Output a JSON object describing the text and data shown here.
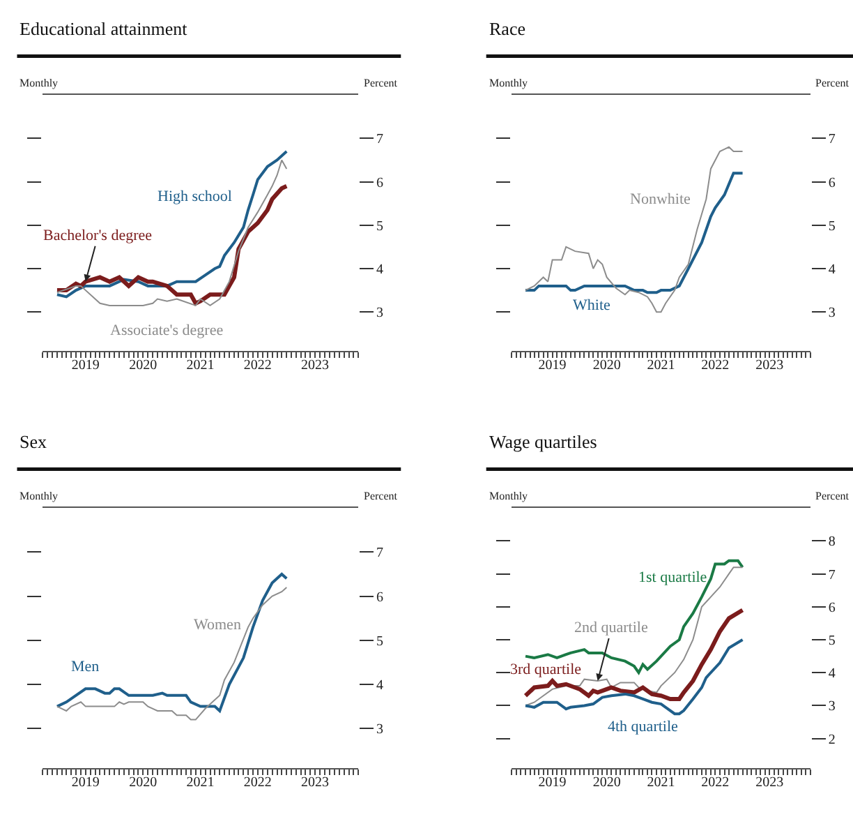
{
  "chart_data": [
    {
      "type": "line",
      "title": "Educational attainment",
      "ylabel": "Percent",
      "annotations": [
        "Monthly"
      ],
      "xlim": [
        "2018-10-01",
        "2024-04-01"
      ],
      "xticks": [
        {
          "value": "2019-07-01",
          "label": "2019"
        },
        {
          "value": "2020-07-01",
          "label": "2020"
        },
        {
          "value": "2021-07-01",
          "label": "2021"
        },
        {
          "value": "2022-07-01",
          "label": "2022"
        },
        {
          "value": "2023-07-01",
          "label": "2023"
        }
      ],
      "ylim": [
        2.1,
        8.0
      ],
      "yticks": [
        3,
        4,
        5,
        6,
        7
      ],
      "legend": false,
      "series": [
        {
          "name": "High school",
          "color": "#1f5f8b",
          "x": [
            "2019-01",
            "2019-03",
            "2019-05",
            "2019-07",
            "2019-12",
            "2020-03",
            "2020-06",
            "2020-08",
            "2020-12",
            "2021-02",
            "2021-06",
            "2021-08",
            "2021-10",
            "2021-11",
            "2021-12",
            "2022-02",
            "2022-04",
            "2022-05",
            "2022-06",
            "2022-07",
            "2022-09",
            "2022-11",
            "2023-01"
          ],
          "values": [
            3.4,
            3.35,
            3.5,
            3.6,
            3.6,
            3.75,
            3.7,
            3.6,
            3.6,
            3.7,
            3.7,
            3.85,
            4.0,
            4.05,
            4.3,
            4.6,
            4.95,
            5.35,
            5.7,
            6.05,
            6.35,
            6.5,
            6.7
          ]
        },
        {
          "name": "Bachelor's degree",
          "color": "#7b1c1c",
          "x": [
            "2019-01",
            "2019-03",
            "2019-05",
            "2019-06",
            "2019-07",
            "2019-10",
            "2019-12",
            "2020-02",
            "2020-04",
            "2020-06",
            "2020-08",
            "2020-09",
            "2020-12",
            "2021-02",
            "2021-05",
            "2021-06",
            "2021-07",
            "2021-09",
            "2021-12",
            "2022-01",
            "2022-02",
            "2022-03",
            "2022-05",
            "2022-07",
            "2022-09",
            "2022-10",
            "2022-12",
            "2023-01"
          ],
          "values": [
            3.5,
            3.5,
            3.65,
            3.6,
            3.7,
            3.8,
            3.7,
            3.8,
            3.6,
            3.8,
            3.7,
            3.7,
            3.6,
            3.4,
            3.4,
            3.2,
            3.25,
            3.4,
            3.4,
            3.6,
            3.8,
            4.45,
            4.85,
            5.05,
            5.35,
            5.6,
            5.85,
            5.9
          ]
        },
        {
          "name": "Associate's degree",
          "color": "#8c8c8c",
          "x": [
            "2019-01",
            "2019-05",
            "2019-06",
            "2019-10",
            "2019-12",
            "2020-07",
            "2020-09",
            "2020-10",
            "2020-12",
            "2021-02",
            "2021-06",
            "2021-07",
            "2021-09",
            "2021-11",
            "2022-01",
            "2022-03",
            "2022-05",
            "2022-07",
            "2022-09",
            "2022-10",
            "2022-11",
            "2022-12",
            "2023-01"
          ],
          "values": [
            3.45,
            3.6,
            3.6,
            3.2,
            3.15,
            3.15,
            3.2,
            3.3,
            3.25,
            3.3,
            3.15,
            3.3,
            3.15,
            3.3,
            3.7,
            4.4,
            4.95,
            5.3,
            5.7,
            5.9,
            6.15,
            6.5,
            6.3
          ]
        }
      ]
    },
    {
      "type": "line",
      "title": "Race",
      "ylabel": "Percent",
      "annotations": [
        "Monthly"
      ],
      "xlim": [
        "2018-10-01",
        "2024-04-01"
      ],
      "xticks": [
        {
          "value": "2019-07-01",
          "label": "2019"
        },
        {
          "value": "2020-07-01",
          "label": "2020"
        },
        {
          "value": "2021-07-01",
          "label": "2021"
        },
        {
          "value": "2022-07-01",
          "label": "2022"
        },
        {
          "value": "2023-07-01",
          "label": "2023"
        }
      ],
      "ylim": [
        2.1,
        8.0
      ],
      "yticks": [
        3,
        4,
        5,
        6,
        7
      ],
      "legend": false,
      "series": [
        {
          "name": "White",
          "color": "#1f5f8b",
          "x": [
            "2019-01",
            "2019-03",
            "2019-04",
            "2019-10",
            "2019-11",
            "2019-12",
            "2020-02",
            "2020-11",
            "2021-01",
            "2021-03",
            "2021-04",
            "2021-06",
            "2021-07",
            "2021-09",
            "2021-11",
            "2022-01",
            "2022-04",
            "2022-06",
            "2022-07",
            "2022-09",
            "2022-11",
            "2023-01"
          ],
          "values": [
            3.5,
            3.5,
            3.6,
            3.6,
            3.5,
            3.5,
            3.6,
            3.6,
            3.5,
            3.5,
            3.45,
            3.45,
            3.5,
            3.5,
            3.6,
            4.0,
            4.6,
            5.2,
            5.4,
            5.7,
            6.2,
            6.2
          ]
        },
        {
          "name": "Nonwhite",
          "color": "#8c8c8c",
          "x": [
            "2019-01",
            "2019-03",
            "2019-05",
            "2019-06",
            "2019-07",
            "2019-09",
            "2019-10",
            "2019-12",
            "2020-03",
            "2020-04",
            "2020-05",
            "2020-06",
            "2020-07",
            "2020-09",
            "2020-11",
            "2020-12",
            "2021-02",
            "2021-04",
            "2021-05",
            "2021-06",
            "2021-07",
            "2021-08",
            "2021-10",
            "2021-11",
            "2022-01",
            "2022-03",
            "2022-05",
            "2022-06",
            "2022-08",
            "2022-09",
            "2022-10",
            "2022-11",
            "2023-01"
          ],
          "values": [
            3.5,
            3.6,
            3.8,
            3.7,
            4.2,
            4.2,
            4.5,
            4.4,
            4.35,
            4.0,
            4.2,
            4.1,
            3.8,
            3.55,
            3.4,
            3.5,
            3.45,
            3.35,
            3.2,
            3.0,
            3.0,
            3.2,
            3.5,
            3.8,
            4.1,
            4.9,
            5.6,
            6.3,
            6.7,
            6.75,
            6.8,
            6.7,
            6.7
          ]
        }
      ]
    },
    {
      "type": "line",
      "title": "Sex",
      "ylabel": "Percent",
      "annotations": [
        "Monthly"
      ],
      "xlim": [
        "2018-10-01",
        "2024-04-01"
      ],
      "xticks": [
        {
          "value": "2019-07-01",
          "label": "2019"
        },
        {
          "value": "2020-07-01",
          "label": "2020"
        },
        {
          "value": "2021-07-01",
          "label": "2021"
        },
        {
          "value": "2022-07-01",
          "label": "2022"
        },
        {
          "value": "2023-07-01",
          "label": "2023"
        }
      ],
      "ylim": [
        2.1,
        8.0
      ],
      "yticks": [
        3,
        4,
        5,
        6,
        7
      ],
      "legend": false,
      "series": [
        {
          "name": "Men",
          "color": "#1f5f8b",
          "x": [
            "2019-01",
            "2019-03",
            "2019-07",
            "2019-09",
            "2019-11",
            "2019-12",
            "2020-01",
            "2020-02",
            "2020-04",
            "2020-09",
            "2020-11",
            "2020-12",
            "2021-04",
            "2021-05",
            "2021-07",
            "2021-10",
            "2021-11",
            "2022-01",
            "2022-04",
            "2022-06",
            "2022-08",
            "2022-10",
            "2022-12",
            "2023-01"
          ],
          "values": [
            3.5,
            3.6,
            3.9,
            3.9,
            3.8,
            3.8,
            3.9,
            3.9,
            3.75,
            3.75,
            3.8,
            3.75,
            3.75,
            3.6,
            3.5,
            3.5,
            3.4,
            4.0,
            4.6,
            5.3,
            5.9,
            6.3,
            6.5,
            6.4
          ]
        },
        {
          "name": "Women",
          "color": "#8c8c8c",
          "x": [
            "2019-01",
            "2019-03",
            "2019-04",
            "2019-06",
            "2019-07",
            "2020-01",
            "2020-02",
            "2020-03",
            "2020-04",
            "2020-07",
            "2020-08",
            "2020-10",
            "2021-01",
            "2021-02",
            "2021-04",
            "2021-05",
            "2021-06",
            "2021-08",
            "2021-11",
            "2021-12",
            "2022-02",
            "2022-05",
            "2022-06",
            "2022-08",
            "2022-10",
            "2022-12",
            "2023-01"
          ],
          "values": [
            3.5,
            3.4,
            3.5,
            3.6,
            3.5,
            3.5,
            3.6,
            3.55,
            3.6,
            3.6,
            3.5,
            3.4,
            3.4,
            3.3,
            3.3,
            3.2,
            3.2,
            3.45,
            3.75,
            4.1,
            4.5,
            5.3,
            5.5,
            5.8,
            6.0,
            6.1,
            6.2
          ]
        }
      ]
    },
    {
      "type": "line",
      "title": "Wage quartiles",
      "ylabel": "Percent",
      "annotations": [
        "Monthly"
      ],
      "xlim": [
        "2018-10-01",
        "2024-04-01"
      ],
      "xticks": [
        {
          "value": "2019-07-01",
          "label": "2019"
        },
        {
          "value": "2020-07-01",
          "label": "2020"
        },
        {
          "value": "2021-07-01",
          "label": "2021"
        },
        {
          "value": "2022-07-01",
          "label": "2022"
        },
        {
          "value": "2023-07-01",
          "label": "2023"
        }
      ],
      "ylim": [
        1.1,
        9.0
      ],
      "yticks": [
        2,
        3,
        4,
        5,
        6,
        7,
        8
      ],
      "legend": false,
      "series": [
        {
          "name": "1st quartile",
          "color": "#1a7a45",
          "x": [
            "2019-01",
            "2019-03",
            "2019-06",
            "2019-08",
            "2019-10",
            "2019-11",
            "2020-02",
            "2020-03",
            "2020-06",
            "2020-08",
            "2020-11",
            "2021-01",
            "2021-02",
            "2021-03",
            "2021-04",
            "2021-06",
            "2021-09",
            "2021-11",
            "2021-12",
            "2022-02",
            "2022-04",
            "2022-06",
            "2022-07",
            "2022-09",
            "2022-10",
            "2022-12",
            "2023-01"
          ],
          "values": [
            4.5,
            4.45,
            4.55,
            4.45,
            4.55,
            4.6,
            4.7,
            4.6,
            4.6,
            4.45,
            4.35,
            4.2,
            4.0,
            4.25,
            4.1,
            4.35,
            4.8,
            5.0,
            5.4,
            5.8,
            6.3,
            6.85,
            7.3,
            7.3,
            7.4,
            7.4,
            7.2
          ]
        },
        {
          "name": "2nd quartile",
          "color": "#8c8c8c",
          "x": [
            "2019-01",
            "2019-03",
            "2019-07",
            "2019-10",
            "2020-01",
            "2020-02",
            "2020-05",
            "2020-07",
            "2020-08",
            "2020-10",
            "2021-01",
            "2021-02",
            "2021-04",
            "2021-06",
            "2021-07",
            "2021-10",
            "2021-12",
            "2022-02",
            "2022-04",
            "2022-06",
            "2022-08",
            "2022-10",
            "2022-11",
            "2023-01"
          ],
          "values": [
            3.0,
            3.1,
            3.5,
            3.6,
            3.6,
            3.8,
            3.75,
            3.8,
            3.55,
            3.7,
            3.7,
            3.55,
            3.45,
            3.4,
            3.6,
            4.0,
            4.4,
            5.0,
            6.0,
            6.3,
            6.6,
            7.0,
            7.2,
            7.2
          ]
        },
        {
          "name": "3rd quartile",
          "color": "#7b1c1c",
          "x": [
            "2019-01",
            "2019-03",
            "2019-06",
            "2019-07",
            "2019-08",
            "2019-10",
            "2019-12",
            "2020-01",
            "2020-03",
            "2020-04",
            "2020-05",
            "2020-07",
            "2020-08",
            "2020-10",
            "2021-01",
            "2021-03",
            "2021-05",
            "2021-07",
            "2021-09",
            "2021-11",
            "2021-12",
            "2022-02",
            "2022-04",
            "2022-06",
            "2022-08",
            "2022-10",
            "2023-01"
          ],
          "values": [
            3.3,
            3.55,
            3.6,
            3.75,
            3.6,
            3.65,
            3.55,
            3.5,
            3.3,
            3.45,
            3.4,
            3.5,
            3.55,
            3.45,
            3.4,
            3.55,
            3.35,
            3.3,
            3.2,
            3.2,
            3.4,
            3.75,
            4.25,
            4.7,
            5.25,
            5.65,
            5.9
          ]
        },
        {
          "name": "4th quartile",
          "color": "#1f5f8b",
          "x": [
            "2019-01",
            "2019-03",
            "2019-05",
            "2019-08",
            "2019-10",
            "2019-11",
            "2020-02",
            "2020-04",
            "2020-06",
            "2020-08",
            "2020-11",
            "2021-01",
            "2021-03",
            "2021-05",
            "2021-07",
            "2021-10",
            "2021-11",
            "2021-12",
            "2022-02",
            "2022-04",
            "2022-05",
            "2022-08",
            "2022-10",
            "2023-01"
          ],
          "values": [
            3.0,
            2.95,
            3.1,
            3.1,
            2.9,
            2.95,
            3.0,
            3.05,
            3.25,
            3.3,
            3.35,
            3.3,
            3.2,
            3.1,
            3.05,
            2.75,
            2.75,
            2.85,
            3.2,
            3.55,
            3.85,
            4.3,
            4.75,
            5.0
          ]
        }
      ]
    }
  ]
}
